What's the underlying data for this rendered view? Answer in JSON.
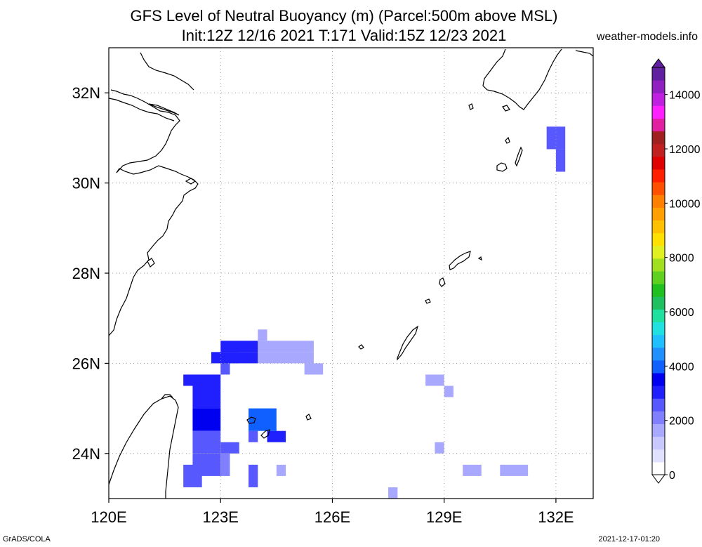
{
  "title_line1": "GFS Level of Neutral Buoyancy (m) (Parcel:500m above MSL)",
  "title_line2": "Init:12Z 12/16 2021 T:171 Valid:15Z 12/23 2021",
  "credit": "weather-models.info",
  "footer_left": "GrADS/COLA",
  "footer_right": "2021-12-17-01:20",
  "lat_labels": [
    "32N",
    "30N",
    "28N",
    "26N",
    "24N"
  ],
  "lon_labels": [
    "120E",
    "123E",
    "126E",
    "129E",
    "132E"
  ],
  "colorbar": {
    "labels": [
      "14000",
      "12000",
      "10000",
      "8000",
      "6000",
      "4000",
      "2000",
      "0"
    ],
    "colors": [
      "#ffffff",
      "#e0e0ff",
      "#c8c8ff",
      "#a8a8ff",
      "#8080ff",
      "#5858ff",
      "#2020ff",
      "#0000f0",
      "#1060ff",
      "#2090ff",
      "#20c0ff",
      "#20e0e0",
      "#20e0a0",
      "#20c060",
      "#20c020",
      "#60d020",
      "#a0e020",
      "#e0f020",
      "#ffe000",
      "#ffc000",
      "#ffa000",
      "#ff8000",
      "#ff5000",
      "#ff2000",
      "#e00000",
      "#c02020",
      "#a02020",
      "#e020a0",
      "#ff20ff",
      "#c020e0",
      "#9020c0",
      "#6020a0"
    ]
  },
  "chart_data": {
    "type": "heatmap",
    "title": "GFS Level of Neutral Buoyancy (m) (Parcel:500m above MSL)",
    "subtitle": "Init:12Z 12/16 2021 T:171 Valid:15Z 12/23 2021",
    "xlabel": "",
    "ylabel": "",
    "xlim": [
      120,
      133
    ],
    "ylim": [
      23,
      33
    ],
    "x_ticks": [
      120,
      123,
      126,
      129,
      132
    ],
    "y_ticks": [
      24,
      26,
      28,
      30,
      32
    ],
    "grid": true,
    "colorbar_range": [
      0,
      15000
    ],
    "cells": [
      {
        "lon": 122.75,
        "lat": 26.0,
        "w": 0.75,
        "h": 0.25,
        "v": 3200
      },
      {
        "lon": 122.0,
        "lat": 25.5,
        "w": 1.0,
        "h": 0.25,
        "v": 3000
      },
      {
        "lon": 123.0,
        "lat": 26.0,
        "w": 1.0,
        "h": 0.25,
        "v": 3000
      },
      {
        "lon": 123.0,
        "lat": 26.25,
        "w": 1.0,
        "h": 0.25,
        "v": 3000
      },
      {
        "lon": 123.0,
        "lat": 25.75,
        "w": 0.25,
        "h": 0.25,
        "v": 2600
      },
      {
        "lon": 124.0,
        "lat": 26.0,
        "w": 1.5,
        "h": 0.25,
        "v": 1800
      },
      {
        "lon": 124.0,
        "lat": 26.25,
        "w": 1.5,
        "h": 0.25,
        "v": 1800
      },
      {
        "lon": 124.0,
        "lat": 26.5,
        "w": 0.25,
        "h": 0.25,
        "v": 1800
      },
      {
        "lon": 125.25,
        "lat": 25.75,
        "w": 0.5,
        "h": 0.25,
        "v": 1800
      },
      {
        "lon": 122.25,
        "lat": 25.0,
        "w": 0.75,
        "h": 0.5,
        "v": 3200
      },
      {
        "lon": 122.25,
        "lat": 24.5,
        "w": 0.75,
        "h": 0.5,
        "v": 3400
      },
      {
        "lon": 122.25,
        "lat": 24.0,
        "w": 0.75,
        "h": 0.5,
        "v": 2800
      },
      {
        "lon": 122.25,
        "lat": 23.5,
        "w": 0.75,
        "h": 0.5,
        "v": 2400
      },
      {
        "lon": 122.0,
        "lat": 23.25,
        "w": 0.5,
        "h": 0.5,
        "v": 2500
      },
      {
        "lon": 123.0,
        "lat": 24.0,
        "w": 0.5,
        "h": 0.25,
        "v": 2400
      },
      {
        "lon": 123.0,
        "lat": 23.5,
        "w": 0.25,
        "h": 0.5,
        "v": 2000
      },
      {
        "lon": 123.75,
        "lat": 24.25,
        "w": 0.25,
        "h": 0.25,
        "v": 2400
      },
      {
        "lon": 123.75,
        "lat": 24.5,
        "w": 0.75,
        "h": 0.5,
        "v": 3800
      },
      {
        "lon": 124.25,
        "lat": 24.25,
        "w": 0.5,
        "h": 0.25,
        "v": 3000
      },
      {
        "lon": 123.75,
        "lat": 23.25,
        "w": 0.25,
        "h": 0.5,
        "v": 2600
      },
      {
        "lon": 124.5,
        "lat": 23.5,
        "w": 0.25,
        "h": 0.25,
        "v": 1800
      },
      {
        "lon": 128.5,
        "lat": 25.5,
        "w": 0.5,
        "h": 0.25,
        "v": 1800
      },
      {
        "lon": 129.0,
        "lat": 25.25,
        "w": 0.25,
        "h": 0.25,
        "v": 1800
      },
      {
        "lon": 128.75,
        "lat": 24.0,
        "w": 0.25,
        "h": 0.25,
        "v": 1800
      },
      {
        "lon": 129.5,
        "lat": 23.5,
        "w": 0.5,
        "h": 0.25,
        "v": 1800
      },
      {
        "lon": 130.5,
        "lat": 23.5,
        "w": 0.75,
        "h": 0.25,
        "v": 1800
      },
      {
        "lon": 127.5,
        "lat": 23.0,
        "w": 0.25,
        "h": 0.25,
        "v": 1800
      },
      {
        "lon": 131.75,
        "lat": 30.75,
        "w": 0.5,
        "h": 0.5,
        "v": 2400
      },
      {
        "lon": 132.0,
        "lat": 30.25,
        "w": 0.25,
        "h": 0.5,
        "v": 2400
      }
    ]
  }
}
